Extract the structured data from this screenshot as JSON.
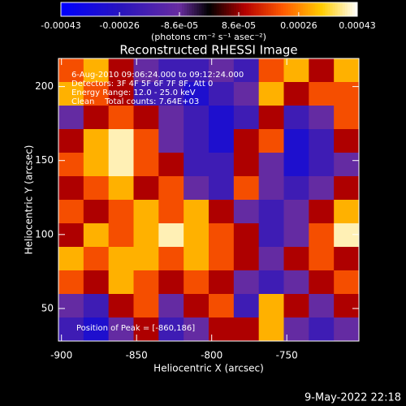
{
  "chart_data": {
    "type": "heatmap",
    "title": "Reconstructed RHESSI Image",
    "xlabel": "Heliocentric X (arcsec)",
    "ylabel": "Heliocentric Y (arcsec)",
    "xlim": [
      -902,
      -702
    ],
    "ylim": [
      28,
      219
    ],
    "xticks": [
      -900,
      -850,
      -800,
      -750
    ],
    "yticks": [
      50,
      100,
      150,
      200
    ],
    "colorbar": {
      "label": "(photons cm⁻² s⁻¹ asec⁻²)",
      "lim": [
        -0.00043,
        0.00043
      ],
      "ticks": [
        -0.00043,
        -0.00026,
        {
          "value": -8.6e-05,
          "label": "-8.6e-05"
        },
        {
          "value": 8.6e-05,
          "label": "8.6e-05"
        },
        0.00026,
        0.00043
      ]
    },
    "annotations": [
      "6-Aug-2010 09:06:24.000 to 09:12:24.000",
      "Detectors: 3F 4F 5F 6F 7F 8F, Att 0",
      "Energy Range: 12.0 - 25.0 keV",
      "Clean    Total counts: 7.64E+03"
    ],
    "peak_note": "Position of Peak = [-860,186]",
    "timestamp": "9-May-2022 22:18",
    "z": [
      [
        0.0002,
        0.0003,
        0.0001,
        -0.0001,
        -0.0002,
        -0.0002,
        -0.0001,
        -0.0002,
        0.0002,
        0.0003,
        0.0001,
        0.0003
      ],
      [
        0.0003,
        0.0002,
        0.0001,
        -0.0002,
        -0.0002,
        -0.0003,
        -0.0002,
        -0.0001,
        0.0003,
        0.0001,
        0.0002,
        0.0002
      ],
      [
        -0.0001,
        0.0001,
        0.0002,
        0.0001,
        -0.0001,
        -0.0002,
        -0.0003,
        -0.0002,
        0.0001,
        -0.0002,
        -0.0001,
        0.0002
      ],
      [
        0.0001,
        0.0003,
        0.0004,
        0.0002,
        -0.0001,
        -0.0002,
        -0.0003,
        0.0001,
        0.0002,
        -0.0003,
        -0.0002,
        0.0001
      ],
      [
        0.0002,
        0.0003,
        0.0004,
        0.0002,
        0.0001,
        -0.0002,
        -0.0002,
        0.0001,
        -0.0001,
        -0.0003,
        -0.0002,
        -0.0001
      ],
      [
        0.0001,
        0.0002,
        0.0003,
        0.0001,
        0.0002,
        -0.0001,
        -0.0002,
        0.0002,
        -0.0001,
        -0.0002,
        -0.0001,
        0.0001
      ],
      [
        0.0002,
        0.0001,
        0.0002,
        0.0003,
        0.0002,
        0.0003,
        0.0001,
        -0.0001,
        -0.0002,
        -0.0001,
        0.0001,
        0.0003
      ],
      [
        0.0001,
        0.0003,
        0.0002,
        0.0003,
        0.0004,
        0.0003,
        0.0002,
        0.0001,
        -0.0002,
        -0.0001,
        0.0002,
        0.0004
      ],
      [
        0.0003,
        0.0002,
        0.0003,
        0.0003,
        0.0002,
        0.0003,
        0.0002,
        0.0001,
        -0.0001,
        0.0001,
        0.0002,
        0.0001
      ],
      [
        0.0002,
        0.0001,
        0.0003,
        0.0002,
        0.0001,
        0.0002,
        0.0001,
        -0.0001,
        -0.0002,
        -0.0001,
        0.0001,
        0.0002
      ],
      [
        -0.0001,
        -0.0002,
        0.0001,
        0.0002,
        -0.0001,
        0.0001,
        0.0002,
        -0.0002,
        0.0003,
        0.0001,
        -0.0001,
        0.0001
      ],
      [
        -0.0002,
        -0.0003,
        -0.0001,
        0.0001,
        -0.0002,
        -0.0001,
        0.0001,
        0.0001,
        0.0003,
        -0.0001,
        -0.0002,
        -0.0001
      ]
    ]
  }
}
